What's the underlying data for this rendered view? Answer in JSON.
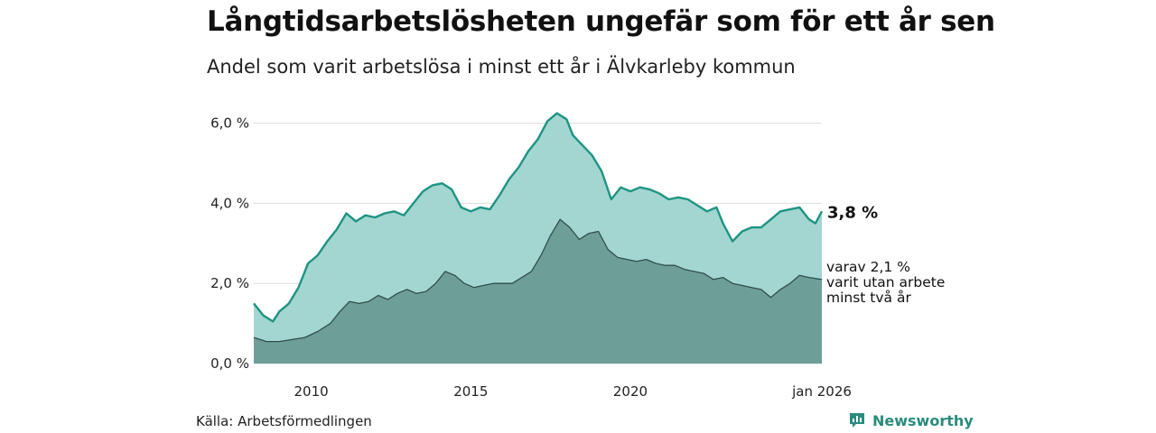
{
  "title": "Långtidsarbetslösheten ungefär som för ett år sen",
  "subtitle": "Andel som varit arbetslösa i minst ett år i Älvkarleby kommun",
  "source": "Källa: Arbetsförmedlingen",
  "brand": "Newsworthy",
  "colors": {
    "total_line": "#1e9483",
    "total_fill": "#a3d6d0",
    "long_line": "#2f4f4b",
    "long_fill": "#6e9e98",
    "grid": "#dddddd"
  },
  "chart_data": {
    "type": "area",
    "x_unit": "year",
    "xlim": [
      2008.2,
      2026.0
    ],
    "ylim": [
      0,
      6.6
    ],
    "y_ticks": [
      0,
      2,
      4,
      6
    ],
    "y_tick_labels": [
      "0,0 %",
      "2,0 %",
      "4,0 %",
      "6,0 %"
    ],
    "x_ticks": [
      2010,
      2015,
      2020,
      2026
    ],
    "x_tick_labels": [
      "2010",
      "2015",
      "2020",
      "jan 2026"
    ],
    "grid": true,
    "series": [
      {
        "key": "total",
        "end_label": "3,8 %",
        "points": [
          [
            2008.2,
            1.5
          ],
          [
            2008.5,
            1.2
          ],
          [
            2008.8,
            1.05
          ],
          [
            2009.0,
            1.3
          ],
          [
            2009.3,
            1.5
          ],
          [
            2009.6,
            1.9
          ],
          [
            2009.9,
            2.5
          ],
          [
            2010.2,
            2.7
          ],
          [
            2010.5,
            3.05
          ],
          [
            2010.8,
            3.35
          ],
          [
            2011.1,
            3.75
          ],
          [
            2011.4,
            3.55
          ],
          [
            2011.7,
            3.7
          ],
          [
            2012.0,
            3.65
          ],
          [
            2012.3,
            3.75
          ],
          [
            2012.6,
            3.8
          ],
          [
            2012.9,
            3.7
          ],
          [
            2013.2,
            4.0
          ],
          [
            2013.5,
            4.3
          ],
          [
            2013.8,
            4.45
          ],
          [
            2014.1,
            4.5
          ],
          [
            2014.4,
            4.35
          ],
          [
            2014.7,
            3.9
          ],
          [
            2015.0,
            3.8
          ],
          [
            2015.3,
            3.9
          ],
          [
            2015.6,
            3.85
          ],
          [
            2015.9,
            4.2
          ],
          [
            2016.2,
            4.6
          ],
          [
            2016.5,
            4.9
          ],
          [
            2016.8,
            5.3
          ],
          [
            2017.1,
            5.6
          ],
          [
            2017.4,
            6.05
          ],
          [
            2017.7,
            6.25
          ],
          [
            2018.0,
            6.1
          ],
          [
            2018.2,
            5.7
          ],
          [
            2018.5,
            5.45
          ],
          [
            2018.8,
            5.2
          ],
          [
            2019.1,
            4.8
          ],
          [
            2019.4,
            4.1
          ],
          [
            2019.7,
            4.4
          ],
          [
            2020.0,
            4.3
          ],
          [
            2020.3,
            4.4
          ],
          [
            2020.6,
            4.35
          ],
          [
            2020.9,
            4.25
          ],
          [
            2021.2,
            4.1
          ],
          [
            2021.5,
            4.15
          ],
          [
            2021.8,
            4.1
          ],
          [
            2022.1,
            3.95
          ],
          [
            2022.4,
            3.8
          ],
          [
            2022.7,
            3.9
          ],
          [
            2022.9,
            3.5
          ],
          [
            2023.2,
            3.05
          ],
          [
            2023.5,
            3.3
          ],
          [
            2023.8,
            3.4
          ],
          [
            2024.1,
            3.4
          ],
          [
            2024.4,
            3.6
          ],
          [
            2024.7,
            3.8
          ],
          [
            2025.0,
            3.85
          ],
          [
            2025.3,
            3.9
          ],
          [
            2025.6,
            3.6
          ],
          [
            2025.8,
            3.5
          ],
          [
            2026.0,
            3.8
          ]
        ]
      },
      {
        "key": "long",
        "end_label": [
          "varav 2,1 %",
          "varit utan arbete",
          "minst två år"
        ],
        "points": [
          [
            2008.2,
            0.65
          ],
          [
            2008.6,
            0.55
          ],
          [
            2009.0,
            0.55
          ],
          [
            2009.4,
            0.6
          ],
          [
            2009.8,
            0.65
          ],
          [
            2010.2,
            0.8
          ],
          [
            2010.6,
            1.0
          ],
          [
            2010.9,
            1.3
          ],
          [
            2011.2,
            1.55
          ],
          [
            2011.5,
            1.5
          ],
          [
            2011.8,
            1.55
          ],
          [
            2012.1,
            1.7
          ],
          [
            2012.4,
            1.6
          ],
          [
            2012.7,
            1.75
          ],
          [
            2013.0,
            1.85
          ],
          [
            2013.3,
            1.75
          ],
          [
            2013.6,
            1.8
          ],
          [
            2013.9,
            2.0
          ],
          [
            2014.2,
            2.3
          ],
          [
            2014.5,
            2.2
          ],
          [
            2014.8,
            2.0
          ],
          [
            2015.1,
            1.9
          ],
          [
            2015.4,
            1.95
          ],
          [
            2015.7,
            2.0
          ],
          [
            2016.0,
            2.0
          ],
          [
            2016.3,
            2.0
          ],
          [
            2016.6,
            2.15
          ],
          [
            2016.9,
            2.3
          ],
          [
            2017.2,
            2.7
          ],
          [
            2017.5,
            3.2
          ],
          [
            2017.8,
            3.6
          ],
          [
            2018.1,
            3.4
          ],
          [
            2018.4,
            3.1
          ],
          [
            2018.7,
            3.25
          ],
          [
            2019.0,
            3.3
          ],
          [
            2019.3,
            2.85
          ],
          [
            2019.6,
            2.65
          ],
          [
            2019.9,
            2.6
          ],
          [
            2020.2,
            2.55
          ],
          [
            2020.5,
            2.6
          ],
          [
            2020.8,
            2.5
          ],
          [
            2021.1,
            2.45
          ],
          [
            2021.4,
            2.45
          ],
          [
            2021.7,
            2.35
          ],
          [
            2022.0,
            2.3
          ],
          [
            2022.3,
            2.25
          ],
          [
            2022.6,
            2.1
          ],
          [
            2022.9,
            2.15
          ],
          [
            2023.2,
            2.0
          ],
          [
            2023.5,
            1.95
          ],
          [
            2023.8,
            1.9
          ],
          [
            2024.1,
            1.85
          ],
          [
            2024.4,
            1.65
          ],
          [
            2024.7,
            1.85
          ],
          [
            2025.0,
            2.0
          ],
          [
            2025.3,
            2.2
          ],
          [
            2025.6,
            2.15
          ],
          [
            2026.0,
            2.1
          ]
        ]
      }
    ]
  }
}
